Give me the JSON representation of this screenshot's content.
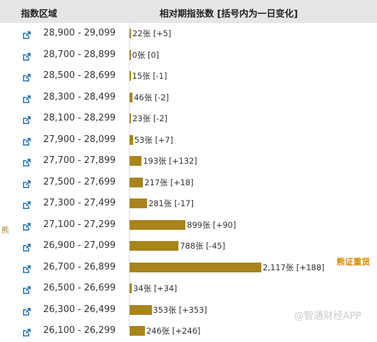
{
  "header": {
    "col_range": "指数区域",
    "col_contracts": "相对期指张数 [括号内为一日变化]"
  },
  "side_label": "熊",
  "heavy_label": "熊证重货",
  "watermark": "@智通财经APP",
  "colors": {
    "bar": "#a8841a",
    "header_bg": "#e6e6e6",
    "heavy_label": "#d98b00"
  },
  "icons": {
    "row_link": "external-link-icon"
  },
  "rows": [
    {
      "range": "28,900 - 29,099",
      "label": "22张 [+5]"
    },
    {
      "range": "28,700 - 28,899",
      "label": "0张 [0]"
    },
    {
      "range": "28,500 - 28,699",
      "label": "15张 [-1]"
    },
    {
      "range": "28,300 - 28,499",
      "label": "46张 [-2]"
    },
    {
      "range": "28,100 - 28,299",
      "label": "23张 [-2]"
    },
    {
      "range": "27,900 - 28,099",
      "label": "53张 [+7]"
    },
    {
      "range": "27,700 - 27,899",
      "label": "193张 [+132]"
    },
    {
      "range": "27,500 - 27,699",
      "label": "217张 [+18]"
    },
    {
      "range": "27,300 - 27,499",
      "label": "281张 [-17]"
    },
    {
      "range": "27,100 - 27,299",
      "label": "899张 [+90]"
    },
    {
      "range": "26,900 - 27,099",
      "label": "788张 [-45]"
    },
    {
      "range": "26,700 - 26,899",
      "label": "2,117张 [+188]"
    },
    {
      "range": "26,500 - 26,699",
      "label": "34张 [+34]"
    },
    {
      "range": "26,300 - 26,499",
      "label": "353张 [+353]"
    },
    {
      "range": "26,100 - 26,299",
      "label": "246张 [+246]"
    }
  ],
  "chart_data": {
    "type": "bar",
    "categories": [
      "28,900 - 29,099",
      "28,700 - 28,899",
      "28,500 - 28,699",
      "28,300 - 28,499",
      "28,100 - 28,299",
      "27,900 - 28,099",
      "27,700 - 27,899",
      "27,500 - 27,699",
      "27,300 - 27,499",
      "27,100 - 27,299",
      "26,900 - 27,099",
      "26,700 - 26,899",
      "26,500 - 26,699",
      "26,300 - 26,499",
      "26,100 - 26,299"
    ],
    "series": [
      {
        "values": [
          22,
          0,
          15,
          46,
          23,
          53,
          193,
          217,
          281,
          899,
          788,
          2117,
          34,
          353,
          246
        ]
      },
      {
        "values": [
          5,
          0,
          -1,
          -2,
          -2,
          7,
          132,
          18,
          -17,
          90,
          -45,
          188,
          34,
          353,
          246
        ]
      }
    ]
  }
}
